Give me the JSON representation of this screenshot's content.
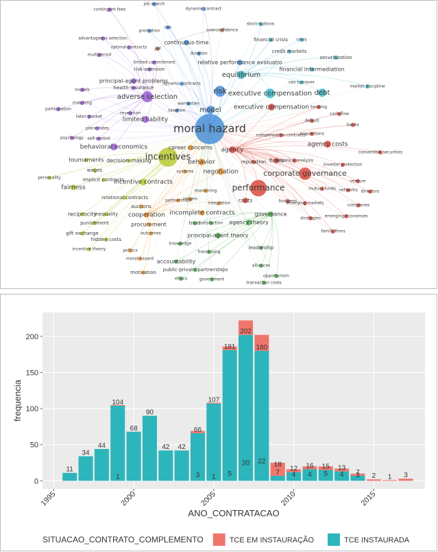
{
  "chart_data": [
    {
      "type": "network",
      "clusters": [
        {
          "color": "#4a90d9",
          "nodes": [
            "moral hazard",
            "model",
            "risk",
            "job search",
            "dynamic contract",
            "continuous-time",
            "duration",
            "relative performance evaluatio",
            "promotion",
            "ceo",
            "dynamic contracts",
            "warranties",
            "taxation"
          ]
        },
        {
          "color": "#9b5fd6",
          "nodes": [
            "adverse selection",
            "limited liability",
            "behavioral economics",
            "principal-agent problems",
            "health-insurance",
            "multiperiod",
            "advantageous selection",
            "optimal contracts",
            "contingent fees",
            "models",
            "participation",
            "labor market",
            "psychology",
            "self-control",
            "piece-rates",
            "matching",
            "risk-aversion",
            "limited commitment",
            "revelation"
          ]
        },
        {
          "color": "#b8c936",
          "nodes": [
            "incentives",
            "tournaments",
            "decision-making",
            "wages",
            "implicit contracts",
            "fairness",
            "reciprocity",
            "inequality",
            "punishment",
            "gift exchange",
            "hidden costs",
            "incentive theory",
            "personality",
            "relational contracts",
            "incentive contracts"
          ]
        },
        {
          "color": "#ee9a34",
          "nodes": [
            "cooperation",
            "procurement",
            "auctions",
            "outcomes",
            "politics",
            "moral-hazard",
            "motivation",
            "behavior",
            "negotiation",
            "career concerns",
            "incomplete contracts",
            "monitoring",
            "integration",
            "partnerships",
            "reform",
            "systems"
          ]
        },
        {
          "color": "#dc4a3f",
          "nodes": [
            "agency",
            "performance",
            "corporate governance",
            "agency costs",
            "firms",
            "costs",
            "executive compensation",
            "banking",
            "banks",
            "convertible securities",
            "investor protection",
            "networks",
            "directors",
            "emerging markets",
            "strategies",
            "emerging economies",
            "family firms",
            "companies",
            "reputation",
            "empirical-analysis",
            "compensation contracts",
            "acquisitions",
            "cash-flow",
            "default",
            "venture",
            "mutual funds",
            "business"
          ]
        },
        {
          "color": "#4caf50",
          "nodes": [
            "governance",
            "trust",
            "satisfaction",
            "agency theory",
            "principal-agent theory",
            "leadership",
            "franchising",
            "knowledge",
            "alliances",
            "opportunism",
            "transaction costs",
            "accountability",
            "public-private partnerships",
            "ethics",
            "government"
          ]
        },
        {
          "color": "#3fb8c9",
          "nodes": [
            "equilibrium",
            "executive compensation",
            "debt",
            "financial intermediation",
            "credit markets",
            "financial crisis",
            "stock-options",
            "securitization",
            "market discipline",
            "ceo turnover",
            "crisis"
          ]
        },
        {
          "color": "#a9745a",
          "nodes": [
            "overconfidence",
            "jail"
          ]
        }
      ]
    },
    {
      "type": "bar",
      "stacked": true,
      "x": [
        1996,
        1997,
        1998,
        1999,
        2000,
        2001,
        2002,
        2003,
        2004,
        2005,
        2006,
        2007,
        2008,
        2009,
        2010,
        2011,
        2012,
        2013,
        2014,
        2015,
        2016,
        2017
      ],
      "series": [
        {
          "name": "TCE EM INSTAURAÇÃO",
          "color": "#f0766d",
          "values": [
            null,
            null,
            null,
            1,
            null,
            null,
            null,
            null,
            3,
            1,
            5,
            20,
            22,
            18,
            4,
            4,
            5,
            4,
            3,
            2,
            1,
            3
          ]
        },
        {
          "name": "TCE INSTAURADA",
          "color": "#2cb5bb",
          "values": [
            11,
            34,
            44,
            104,
            68,
            90,
            42,
            42,
            66,
            107,
            181,
            202,
            180,
            7,
            12,
            16,
            15,
            13,
            7,
            null,
            null,
            null
          ]
        }
      ],
      "xlim": [
        1994.3,
        2018.2
      ],
      "xticks": [
        1995,
        2000,
        2005,
        2010,
        2015
      ],
      "ylim": [
        -11.1,
        233.1
      ],
      "yticks": [
        0,
        50,
        100,
        150,
        200
      ],
      "xlabel": "ANO_CONTRATACAO",
      "ylabel": "frequencia",
      "legend_title": "SITUACAO_CONTRATO_COMPLEMENTO",
      "legend": "bottom",
      "grid": true
    }
  ]
}
